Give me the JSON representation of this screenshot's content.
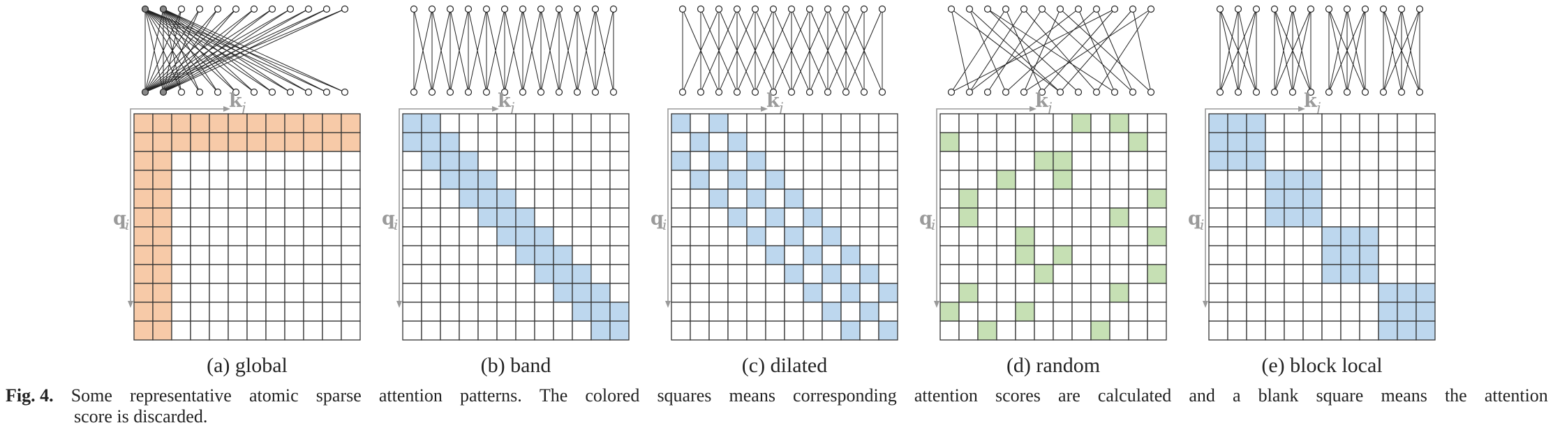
{
  "colors": {
    "global": "#f7caa8",
    "band": "#bdd7ee",
    "dilated": "#bdd7ee",
    "random": "#c6e0b4",
    "block": "#bdd7ee",
    "grid_line": "#333333",
    "axis_gray": "#9a9a9a"
  },
  "grid_size": 12,
  "axis_labels": {
    "key": "k",
    "key_sub": "j",
    "query": "q",
    "query_sub": "i"
  },
  "panels": [
    {
      "id": "global",
      "label": "(a)  global",
      "pattern": "global",
      "global_tokens": 2,
      "highlighted_nodes": [
        0,
        1
      ]
    },
    {
      "id": "band",
      "label": "(b)  band",
      "pattern": "band",
      "band_offsets": [
        -1,
        0,
        1
      ]
    },
    {
      "id": "dilated",
      "label": "(c)  dilated",
      "pattern": "dilated",
      "band_offsets": [
        -2,
        0,
        2
      ]
    },
    {
      "id": "random",
      "label": "(d)  random",
      "pattern": "random",
      "cells": [
        [
          0,
          7
        ],
        [
          0,
          9
        ],
        [
          1,
          0
        ],
        [
          1,
          10
        ],
        [
          2,
          5
        ],
        [
          2,
          6
        ],
        [
          3,
          3
        ],
        [
          3,
          6
        ],
        [
          4,
          1
        ],
        [
          4,
          11
        ],
        [
          5,
          1
        ],
        [
          5,
          9
        ],
        [
          6,
          4
        ],
        [
          6,
          11
        ],
        [
          7,
          4
        ],
        [
          7,
          6
        ],
        [
          8,
          5
        ],
        [
          8,
          11
        ],
        [
          9,
          1
        ],
        [
          9,
          9
        ],
        [
          10,
          0
        ],
        [
          10,
          4
        ],
        [
          11,
          2
        ],
        [
          11,
          8
        ]
      ],
      "links": [
        [
          0,
          1
        ],
        [
          0,
          6
        ],
        [
          1,
          3
        ],
        [
          1,
          6
        ],
        [
          2,
          7
        ],
        [
          2,
          9
        ],
        [
          3,
          0
        ],
        [
          3,
          5
        ],
        [
          4,
          8
        ],
        [
          4,
          1
        ],
        [
          5,
          2
        ],
        [
          5,
          10
        ],
        [
          6,
          4
        ],
        [
          6,
          11
        ],
        [
          7,
          1
        ],
        [
          7,
          9
        ],
        [
          8,
          3
        ],
        [
          8,
          10
        ],
        [
          9,
          0
        ],
        [
          9,
          5
        ],
        [
          10,
          6
        ],
        [
          10,
          11
        ],
        [
          11,
          4
        ],
        [
          11,
          8
        ]
      ]
    },
    {
      "id": "block_local",
      "label": "(e)  block local",
      "pattern": "block",
      "block_size": 3
    }
  ],
  "caption": {
    "lead": "Fig.  4.",
    "line1_words": [
      "Some",
      "representative",
      "atomic",
      "sparse",
      "attention",
      "patterns.",
      "The",
      "colored",
      "squares",
      "means",
      "corresponding",
      "attention",
      "scores",
      "are",
      "calculated",
      "and",
      "a",
      "blank",
      "square",
      "means",
      "the",
      "attention"
    ],
    "line2": "score is discarded."
  }
}
